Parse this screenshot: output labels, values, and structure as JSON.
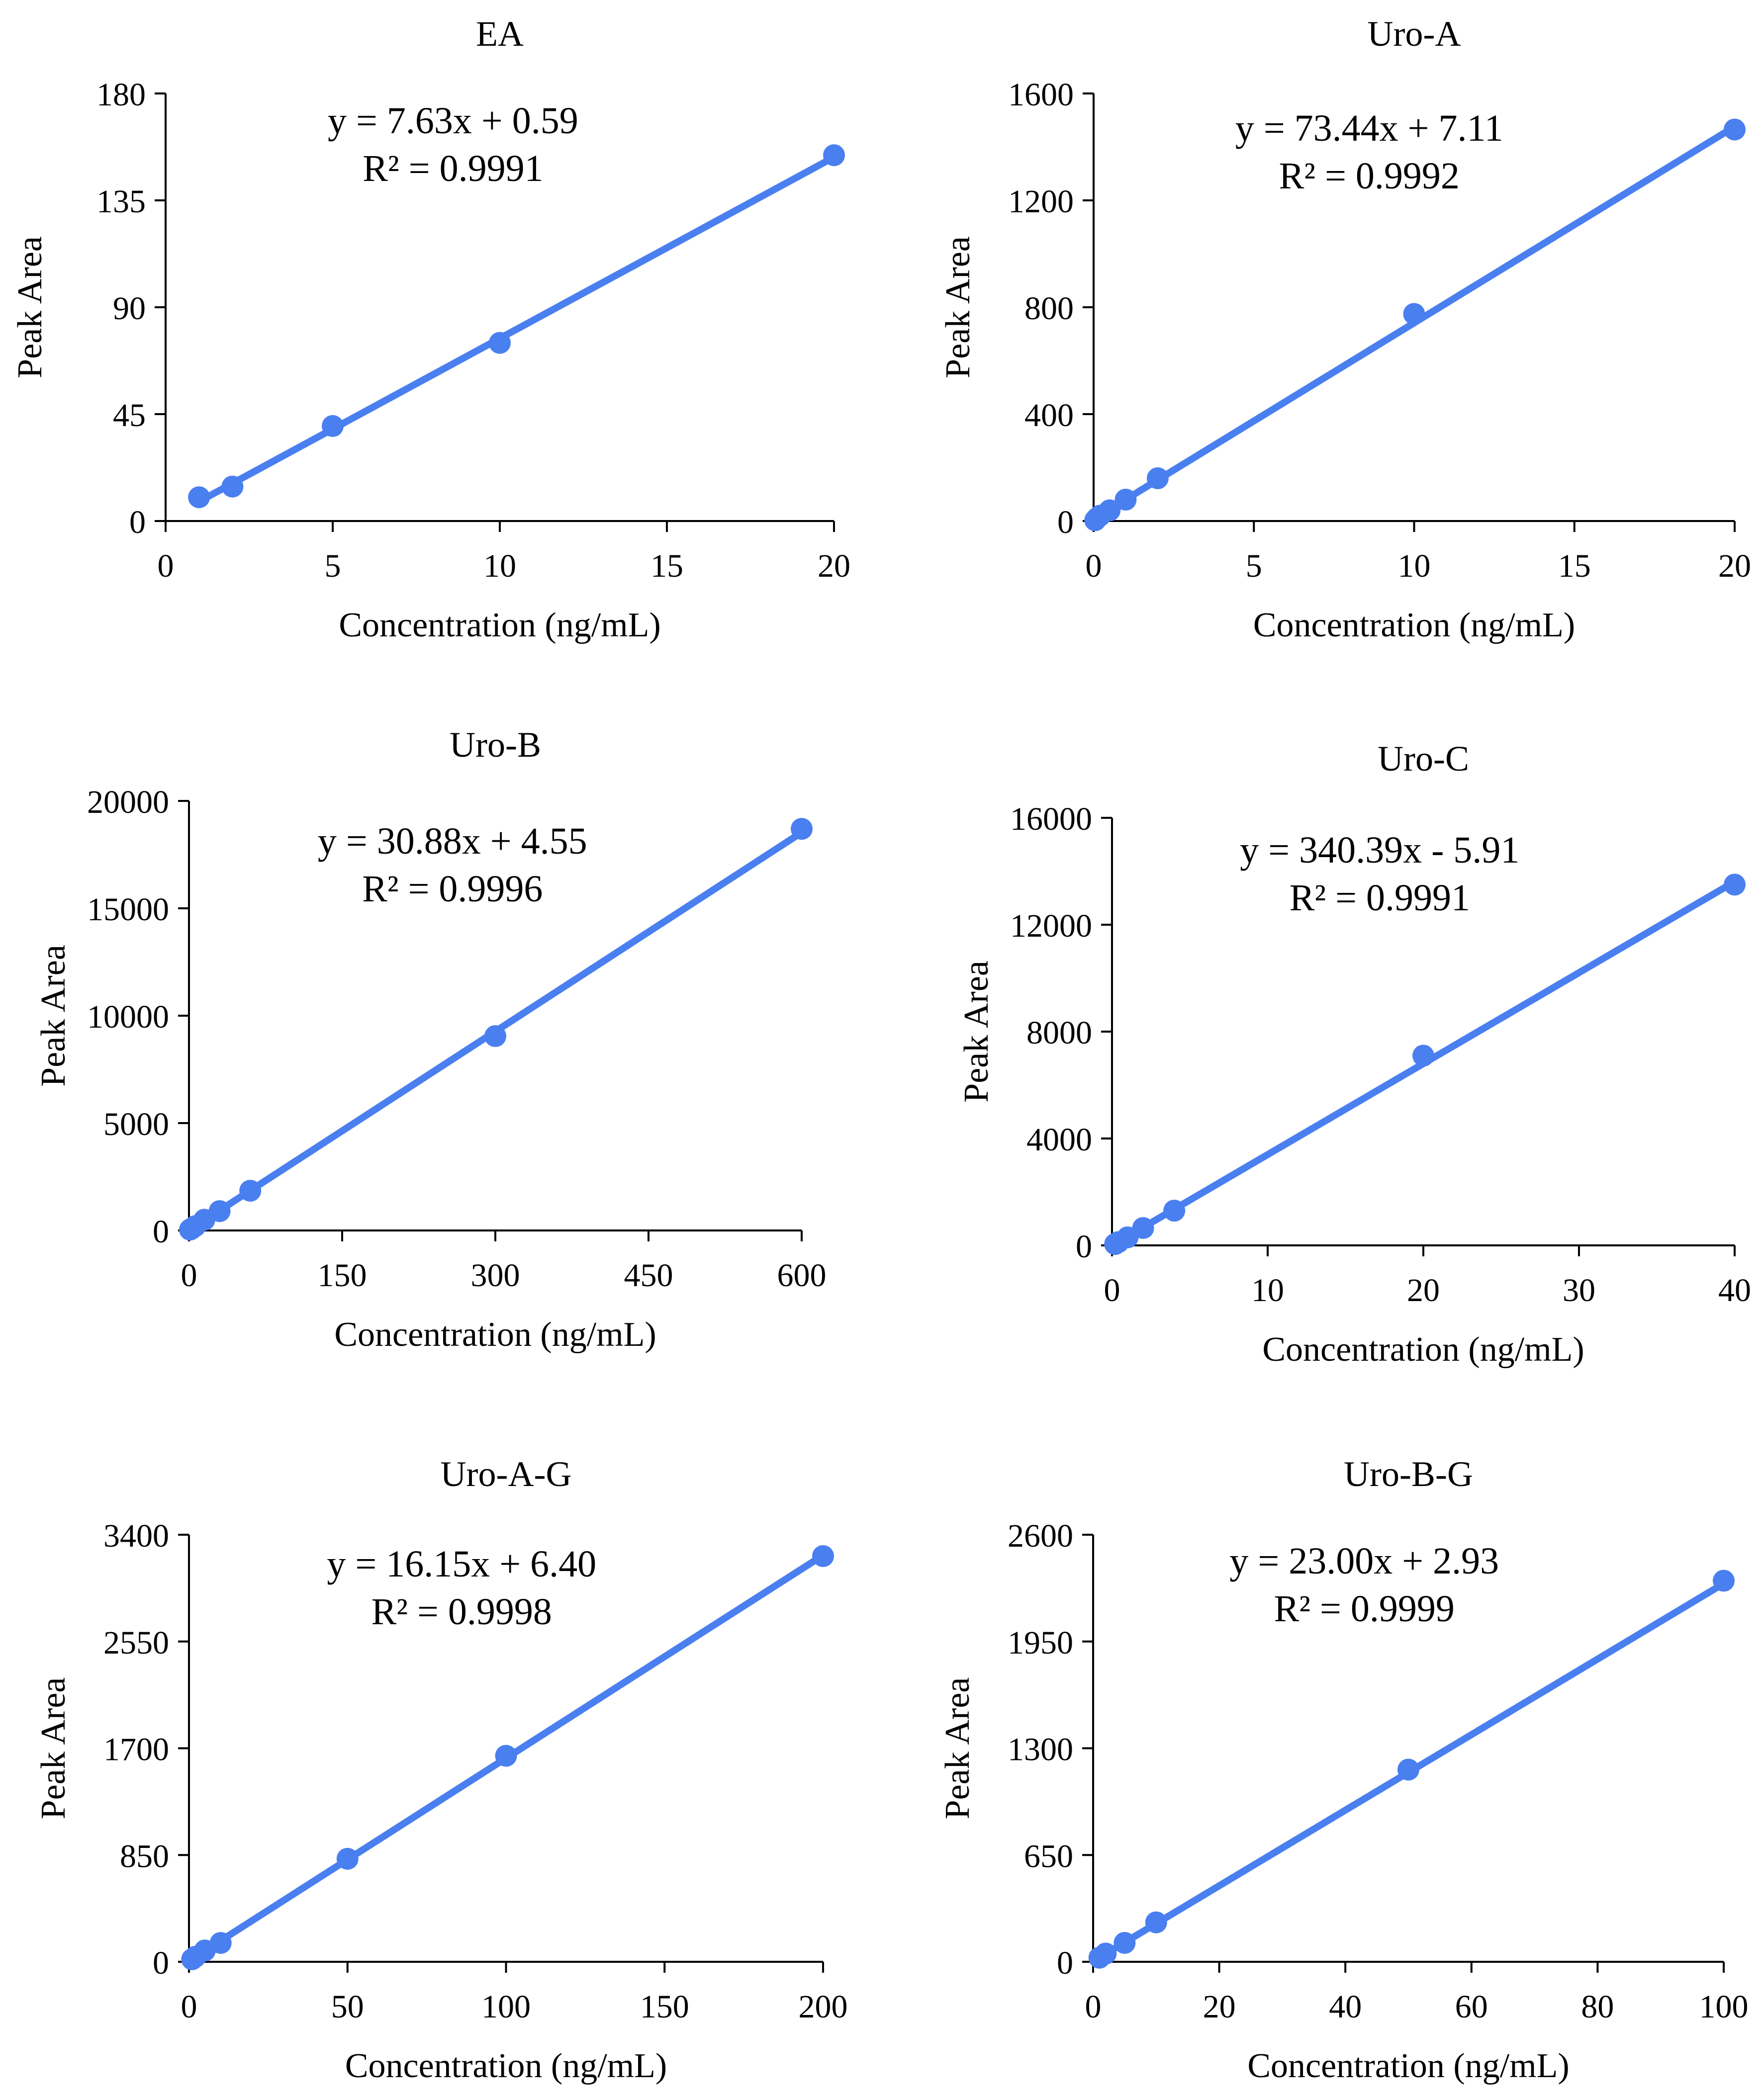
{
  "style": {
    "series_color": "#4a7ff0",
    "axis_color": "#000000"
  },
  "chart_data": [
    {
      "type": "scatter",
      "title": "EA",
      "xlabel": "Concentration (ng/mL)",
      "ylabel": "Peak Area",
      "xlim": [
        0,
        20
      ],
      "ylim": [
        0,
        180
      ],
      "xticks": [
        0,
        5,
        10,
        15,
        20
      ],
      "yticks": [
        0,
        45,
        90,
        135,
        180
      ],
      "series": [
        {
          "x": [
            1,
            2,
            5,
            10,
            20
          ],
          "y": [
            10,
            14.5,
            40,
            75,
            154
          ]
        }
      ],
      "trendline": {
        "slope": 7.63,
        "intercept": 0.59,
        "x_range": [
          1,
          20
        ]
      },
      "equation": "y = 7.63x + 0.59",
      "r2": "R² = 0.9991",
      "grid": false
    },
    {
      "type": "scatter",
      "title": "Uro-A",
      "xlabel": "Concentration (ng/mL)",
      "ylabel": "Peak Area",
      "xlim": [
        0,
        20
      ],
      "ylim": [
        0,
        1600
      ],
      "xticks": [
        0,
        5,
        10,
        15,
        20
      ],
      "yticks": [
        0,
        400,
        800,
        1200,
        1600
      ],
      "series": [
        {
          "x": [
            0.05,
            0.1,
            0.2,
            0.5,
            1,
            2,
            10,
            20
          ],
          "y": [
            3,
            10,
            20,
            40,
            80,
            160,
            775,
            1465
          ]
        }
      ],
      "trendline": {
        "slope": 73.44,
        "intercept": 7.11,
        "x_range": [
          0.05,
          20
        ]
      },
      "equation": "y = 73.44x + 7.11",
      "r2": "R² = 0.9992",
      "grid": false
    },
    {
      "type": "scatter",
      "title": "Uro-B",
      "xlabel": "Concentration (ng/mL)",
      "ylabel": "Peak Area",
      "xlim": [
        0,
        600
      ],
      "ylim": [
        0,
        20000
      ],
      "xticks": [
        0,
        150,
        300,
        450,
        600
      ],
      "yticks": [
        0,
        5000,
        10000,
        15000,
        20000
      ],
      "series": [
        {
          "x": [
            1,
            3,
            6,
            15,
            30,
            60,
            300,
            600
          ],
          "y": [
            40,
            100,
            200,
            500,
            900,
            1850,
            9050,
            18700
          ]
        }
      ],
      "trendline": {
        "slope": 30.88,
        "intercept": 4.55,
        "x_range": [
          1,
          600
        ]
      },
      "equation": "y = 30.88x + 4.55",
      "r2": "R² = 0.9996",
      "grid": false
    },
    {
      "type": "scatter",
      "title": "Uro-C",
      "xlabel": "Concentration (ng/mL)",
      "ylabel": "Peak Area",
      "xlim": [
        0,
        40
      ],
      "ylim": [
        0,
        16000
      ],
      "xticks": [
        0,
        10,
        20,
        30,
        40
      ],
      "yticks": [
        0,
        4000,
        8000,
        12000,
        16000
      ],
      "series": [
        {
          "x": [
            0.2,
            0.4,
            1,
            2,
            4,
            20,
            40
          ],
          "y": [
            50,
            120,
            300,
            650,
            1300,
            7100,
            13500
          ]
        }
      ],
      "trendline": {
        "slope": 340.39,
        "intercept": -5.91,
        "x_range": [
          0.2,
          40
        ]
      },
      "equation": "y = 340.39x - 5.91",
      "r2": "R² = 0.9991",
      "grid": false
    },
    {
      "type": "scatter",
      "title": "Uro-A-G",
      "xlabel": "Concentration (ng/mL)",
      "ylabel": "Peak Area",
      "xlim": [
        0,
        200
      ],
      "ylim": [
        0,
        3400
      ],
      "xticks": [
        0,
        50,
        100,
        150,
        200
      ],
      "yticks": [
        0,
        850,
        1700,
        2550,
        3400
      ],
      "series": [
        {
          "x": [
            1,
            2,
            5,
            10,
            50,
            100,
            200
          ],
          "y": [
            20,
            40,
            90,
            150,
            820,
            1640,
            3230
          ]
        }
      ],
      "trendline": {
        "slope": 16.15,
        "intercept": 6.4,
        "x_range": [
          1,
          200
        ]
      },
      "equation": "y = 16.15x + 6.40",
      "r2": "R² = 0.9998",
      "grid": false
    },
    {
      "type": "scatter",
      "title": "Uro-B-G",
      "xlabel": "Concentration (ng/mL)",
      "ylabel": "Peak Area",
      "xlim": [
        0,
        100
      ],
      "ylim": [
        0,
        2600
      ],
      "xticks": [
        0,
        20,
        40,
        60,
        80,
        100
      ],
      "yticks": [
        0,
        650,
        1300,
        1950,
        2600
      ],
      "series": [
        {
          "x": [
            1,
            2,
            5,
            10,
            50,
            100
          ],
          "y": [
            25,
            50,
            115,
            240,
            1170,
            2320
          ]
        }
      ],
      "trendline": {
        "slope": 23.0,
        "intercept": 2.93,
        "x_range": [
          1,
          100
        ]
      },
      "equation": "y = 23.00x + 2.93",
      "r2": "R² = 0.9999",
      "grid": false
    }
  ]
}
